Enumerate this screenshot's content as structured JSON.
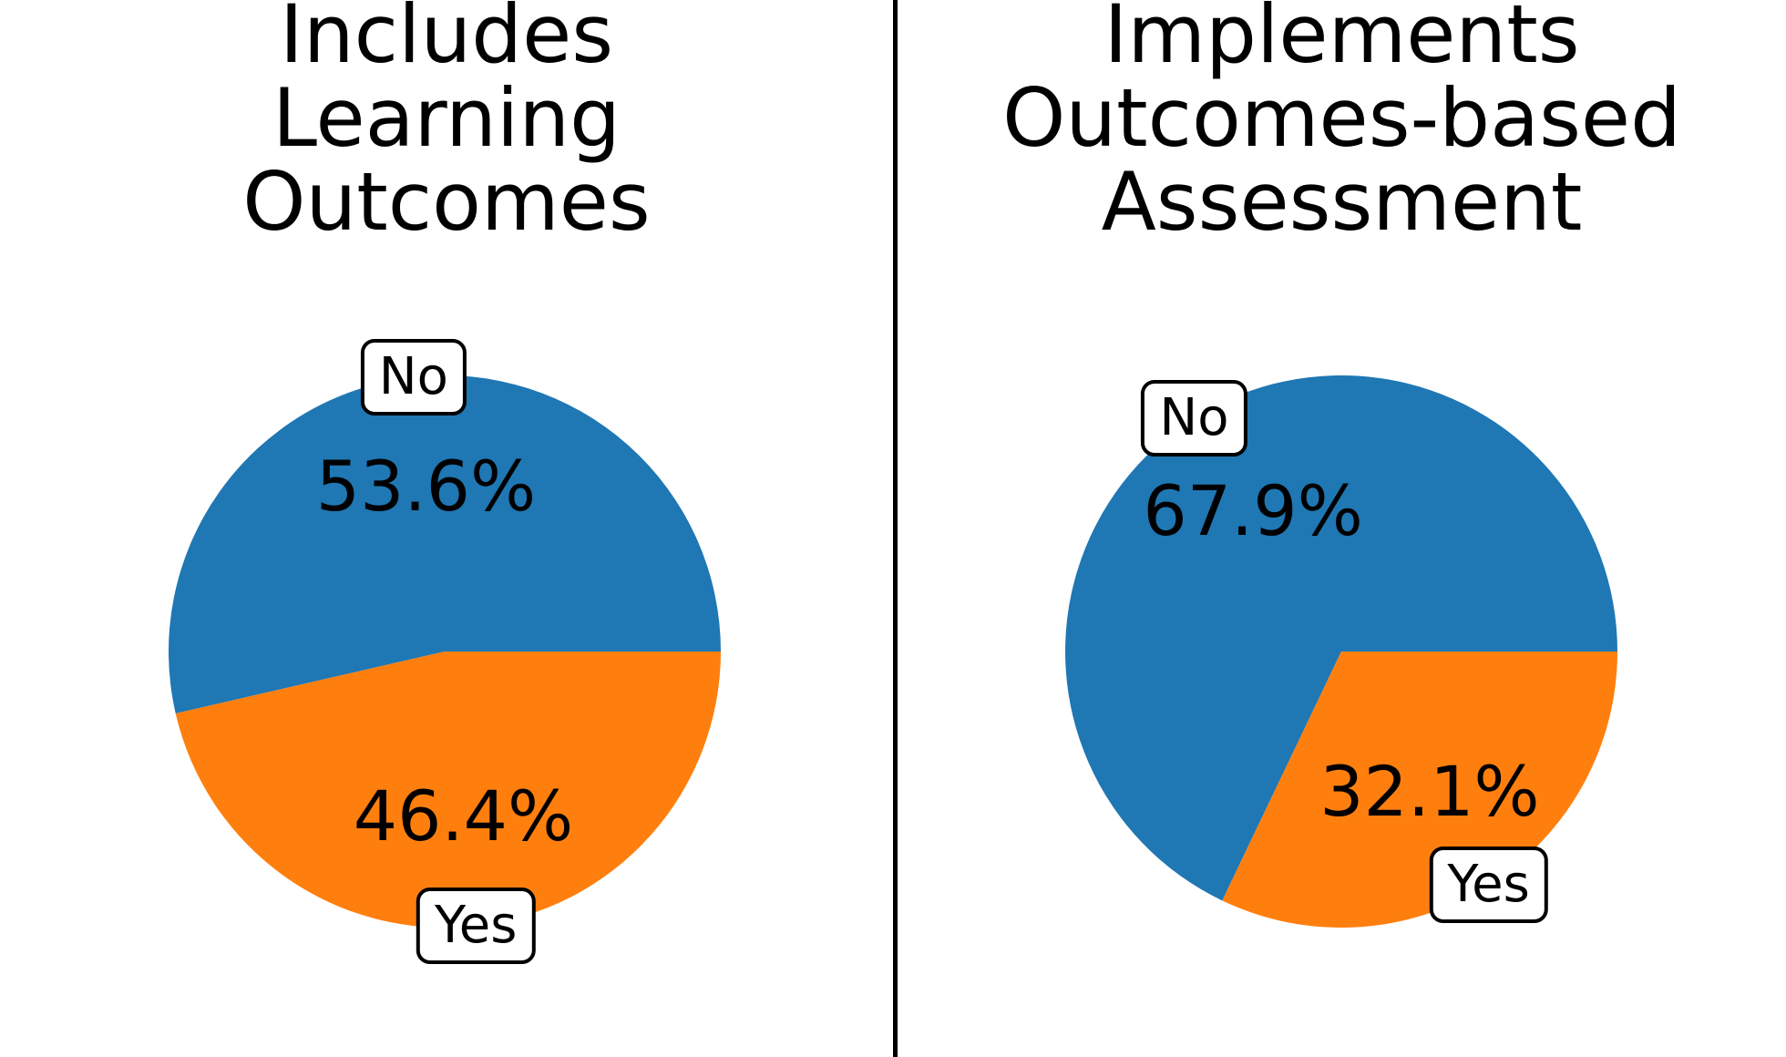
{
  "page": {
    "background_color": "#ffffff",
    "divider_color": "#000000",
    "text_color": "#000000"
  },
  "chart_data": [
    {
      "type": "pie",
      "title": "Includes Learning Outcomes",
      "title_lines": [
        "Includes",
        "Learning",
        "Outcomes"
      ],
      "slices": [
        {
          "label": "No",
          "value": 53.6,
          "pct_label": "53.6%",
          "color": "#1f77b4"
        },
        {
          "label": "Yes",
          "value": 46.4,
          "pct_label": "46.4%",
          "color": "#ff7f0e"
        }
      ],
      "start_angle_deg": 0,
      "direction": "counterclockwise",
      "label_distance": 1.0,
      "pct_distance": 0.6,
      "legend": "none"
    },
    {
      "type": "pie",
      "title": "Implements Outcomes-based Assessment",
      "title_lines": [
        "Implements",
        "Outcomes-based",
        "Assessment"
      ],
      "slices": [
        {
          "label": "No",
          "value": 67.9,
          "pct_label": "67.9%",
          "color": "#1f77b4"
        },
        {
          "label": "Yes",
          "value": 32.1,
          "pct_label": "32.1%",
          "color": "#ff7f0e"
        }
      ],
      "start_angle_deg": 0,
      "direction": "counterclockwise",
      "label_distance": 1.0,
      "pct_distance": 0.6,
      "legend": "none"
    }
  ]
}
